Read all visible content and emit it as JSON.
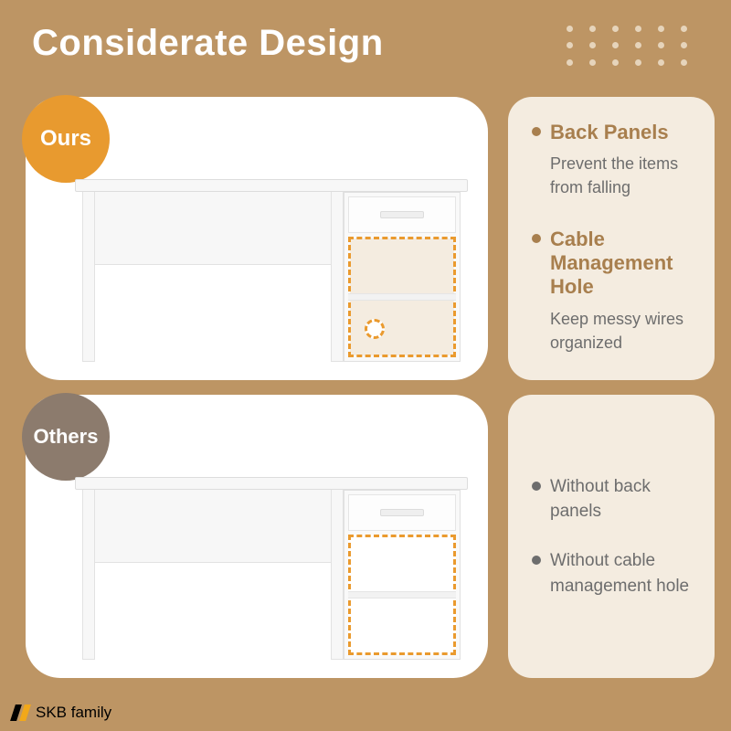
{
  "title": "Considerate Design",
  "colors": {
    "background": "#bd9564",
    "card_bg": "#f4ece0",
    "panel_bg": "#ffffff",
    "ours_badge": "#e89a2f",
    "others_badge": "#8c7b6d",
    "heading": "#a87f4e",
    "body_text": "#6d6d6d",
    "dash": "#ea9a2e",
    "dot_grid": "#e6d4bb",
    "logo_bar1": "#000000",
    "logo_bar2": "#f2a81a"
  },
  "badges": {
    "ours": "Ours",
    "others": "Others"
  },
  "features_ours": [
    {
      "title": "Back Panels",
      "desc": "Prevent the items from falling"
    },
    {
      "title": "Cable Management Hole",
      "desc": "Keep messy wires organized"
    }
  ],
  "features_others": [
    {
      "text": "Without back panels"
    },
    {
      "text": "Without cable management hole"
    }
  ],
  "logo": {
    "brand": "SKB family"
  }
}
